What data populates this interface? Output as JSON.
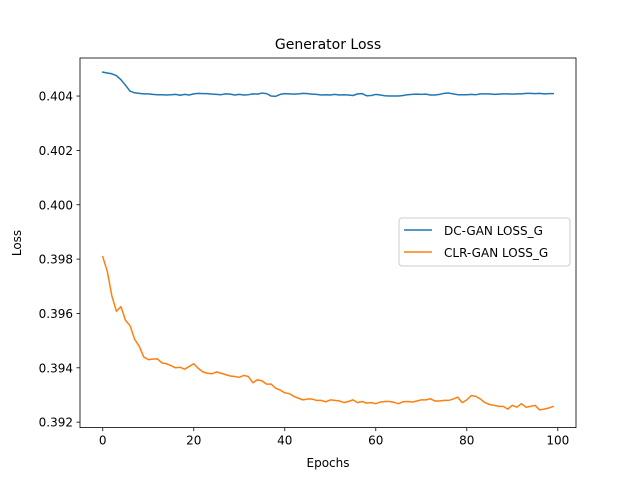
{
  "chart_data": {
    "type": "line",
    "title": "Generator Loss",
    "xlabel": "Epochs",
    "ylabel": "Loss",
    "xlim": [
      -5,
      104
    ],
    "ylim": [
      0.3918,
      0.4054
    ],
    "xticks": [
      0,
      20,
      40,
      60,
      80,
      100
    ],
    "xtick_labels": [
      "0",
      "20",
      "40",
      "60",
      "80",
      "100"
    ],
    "yticks": [
      0.392,
      0.394,
      0.396,
      0.398,
      0.4,
      0.402,
      0.404
    ],
    "ytick_labels": [
      "0.392",
      "0.394",
      "0.396",
      "0.398",
      "0.400",
      "0.402",
      "0.404"
    ],
    "grid": false,
    "legend_position": "center-right",
    "series": [
      {
        "name": "DC-GAN LOSS_G",
        "color": "#1f77b4",
        "x": [
          0,
          1,
          2,
          3,
          4,
          5,
          6,
          7,
          8,
          9,
          10,
          11,
          12,
          13,
          14,
          15,
          16,
          17,
          18,
          19,
          20,
          21,
          22,
          23,
          24,
          25,
          26,
          27,
          28,
          29,
          30,
          31,
          32,
          33,
          34,
          35,
          36,
          37,
          38,
          39,
          40,
          41,
          42,
          43,
          44,
          45,
          46,
          47,
          48,
          49,
          50,
          51,
          52,
          53,
          54,
          55,
          56,
          57,
          58,
          59,
          60,
          61,
          62,
          63,
          64,
          65,
          66,
          67,
          68,
          69,
          70,
          71,
          72,
          73,
          74,
          75,
          76,
          77,
          78,
          79,
          80,
          81,
          82,
          83,
          84,
          85,
          86,
          87,
          88,
          89,
          90,
          91,
          92,
          93,
          94,
          95,
          96,
          97,
          98,
          99
        ],
        "values": [
          0.40488,
          0.40485,
          0.40482,
          0.40475,
          0.4046,
          0.4044,
          0.40418,
          0.40412,
          0.4041,
          0.40408,
          0.40408,
          0.40406,
          0.40405,
          0.40405,
          0.40404,
          0.40405,
          0.40406,
          0.40403,
          0.40406,
          0.40404,
          0.40408,
          0.4041,
          0.40409,
          0.40409,
          0.40407,
          0.40406,
          0.40405,
          0.40408,
          0.40407,
          0.40404,
          0.40406,
          0.40404,
          0.40405,
          0.40408,
          0.40407,
          0.40411,
          0.40409,
          0.404,
          0.40399,
          0.40406,
          0.40409,
          0.40408,
          0.40407,
          0.40408,
          0.4041,
          0.40409,
          0.40407,
          0.40406,
          0.40404,
          0.40405,
          0.40404,
          0.40406,
          0.40404,
          0.40405,
          0.40404,
          0.40402,
          0.40408,
          0.40409,
          0.40401,
          0.40402,
          0.40406,
          0.40404,
          0.40401,
          0.404,
          0.404,
          0.404,
          0.40402,
          0.40405,
          0.40406,
          0.40407,
          0.40406,
          0.40407,
          0.40404,
          0.40404,
          0.40406,
          0.4041,
          0.40411,
          0.40408,
          0.40405,
          0.40405,
          0.40405,
          0.40406,
          0.40405,
          0.40408,
          0.40408,
          0.40408,
          0.40406,
          0.40407,
          0.40408,
          0.40408,
          0.40407,
          0.40408,
          0.40408,
          0.4041,
          0.4041,
          0.40409,
          0.4041,
          0.40408,
          0.40409,
          0.40409
        ]
      },
      {
        "name": "CLR-GAN LOSS_G",
        "color": "#ff7f0e",
        "x": [
          0,
          1,
          2,
          3,
          4,
          5,
          6,
          7,
          8,
          9,
          10,
          11,
          12,
          13,
          14,
          15,
          16,
          17,
          18,
          19,
          20,
          21,
          22,
          23,
          24,
          25,
          26,
          27,
          28,
          29,
          30,
          31,
          32,
          33,
          34,
          35,
          36,
          37,
          38,
          39,
          40,
          41,
          42,
          43,
          44,
          45,
          46,
          47,
          48,
          49,
          50,
          51,
          52,
          53,
          54,
          55,
          56,
          57,
          58,
          59,
          60,
          61,
          62,
          63,
          64,
          65,
          66,
          67,
          68,
          69,
          70,
          71,
          72,
          73,
          74,
          75,
          76,
          77,
          78,
          79,
          80,
          81,
          82,
          83,
          84,
          85,
          86,
          87,
          88,
          89,
          90,
          91,
          92,
          93,
          94,
          95,
          96,
          97,
          98,
          99
        ],
        "values": [
          0.39809,
          0.39755,
          0.39665,
          0.39608,
          0.39625,
          0.39575,
          0.39555,
          0.39505,
          0.3948,
          0.3944,
          0.3943,
          0.39432,
          0.39433,
          0.39418,
          0.39415,
          0.39408,
          0.394,
          0.39402,
          0.39395,
          0.39405,
          0.39415,
          0.39398,
          0.39385,
          0.3938,
          0.39378,
          0.39385,
          0.3938,
          0.39375,
          0.3937,
          0.39368,
          0.39365,
          0.39372,
          0.39368,
          0.39345,
          0.39356,
          0.39352,
          0.3934,
          0.3934,
          0.39325,
          0.39318,
          0.39308,
          0.39305,
          0.39295,
          0.39288,
          0.39282,
          0.39285,
          0.39285,
          0.3928,
          0.3928,
          0.39275,
          0.39282,
          0.3928,
          0.39278,
          0.39272,
          0.39276,
          0.39282,
          0.39272,
          0.39276,
          0.3927,
          0.39272,
          0.39268,
          0.39274,
          0.39276,
          0.39276,
          0.39273,
          0.39268,
          0.39275,
          0.39276,
          0.39274,
          0.39278,
          0.39282,
          0.39282,
          0.39286,
          0.39278,
          0.39278,
          0.3928,
          0.3928,
          0.39285,
          0.39292,
          0.39272,
          0.39282,
          0.39298,
          0.39295,
          0.39285,
          0.39272,
          0.39265,
          0.39262,
          0.39258,
          0.39258,
          0.39248,
          0.39262,
          0.39255,
          0.39268,
          0.39255,
          0.39258,
          0.39262,
          0.39245,
          0.39248,
          0.39252,
          0.39258
        ]
      }
    ]
  }
}
